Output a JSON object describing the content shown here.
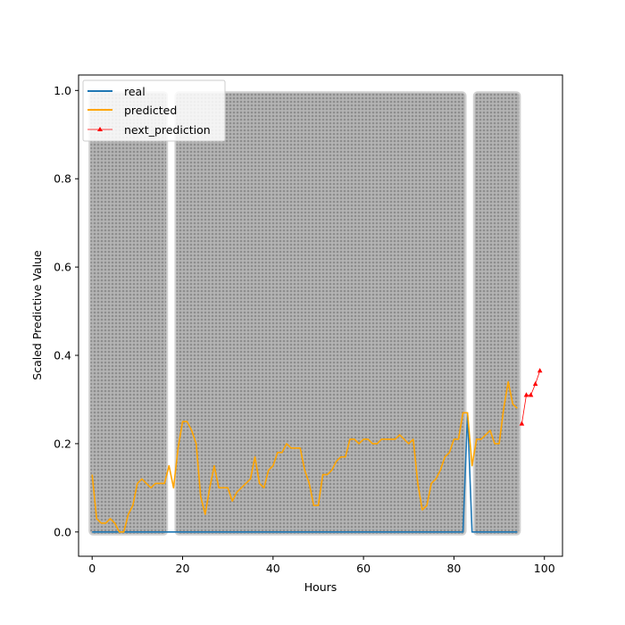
{
  "chart_data": {
    "type": "line",
    "title": "",
    "xlabel": "Hours",
    "ylabel": "Scaled Predictive Value",
    "xlim": [
      -3,
      104
    ],
    "ylim": [
      -0.055,
      1.035
    ],
    "x_ticks": [
      0,
      20,
      40,
      60,
      80,
      100
    ],
    "y_ticks": [
      0.0,
      0.2,
      0.4,
      0.6,
      0.8,
      1.0
    ],
    "x_tick_labels": [
      "0",
      "20",
      "40",
      "60",
      "80",
      "100"
    ],
    "y_tick_labels": [
      "0.0",
      "0.2",
      "0.4",
      "0.6",
      "0.8",
      "1.0"
    ],
    "grid": false,
    "legend_position": "top-left",
    "shaded_regions": {
      "color": "#a8a8a8",
      "spans": [
        [
          0,
          16
        ],
        [
          19,
          82
        ],
        [
          85,
          94
        ]
      ],
      "ymax": 0.99
    },
    "series": [
      {
        "name": "real",
        "color": "#1f77b4",
        "x": [
          0,
          82,
          83,
          84,
          94
        ],
        "values": [
          0,
          0,
          0.27,
          0,
          0
        ]
      },
      {
        "name": "predicted",
        "color": "#ffa500",
        "x": [
          0,
          1,
          2,
          3,
          4,
          5,
          6,
          7,
          8,
          9,
          10,
          11,
          12,
          13,
          14,
          15,
          16,
          17,
          18,
          19,
          20,
          21,
          22,
          23,
          24,
          25,
          26,
          27,
          28,
          29,
          30,
          31,
          32,
          33,
          34,
          35,
          36,
          37,
          38,
          39,
          40,
          41,
          42,
          43,
          44,
          45,
          46,
          47,
          48,
          49,
          50,
          51,
          52,
          53,
          54,
          55,
          56,
          57,
          58,
          59,
          60,
          61,
          62,
          63,
          64,
          65,
          66,
          67,
          68,
          69,
          70,
          71,
          72,
          73,
          74,
          75,
          76,
          77,
          78,
          79,
          80,
          81,
          82,
          83,
          84,
          85,
          86,
          87,
          88,
          89,
          90,
          91,
          92,
          93,
          94
        ],
        "values": [
          0.13,
          0.03,
          0.02,
          0.02,
          0.03,
          0.02,
          0.0,
          0.0,
          0.04,
          0.06,
          0.11,
          0.12,
          0.11,
          0.1,
          0.11,
          0.11,
          0.11,
          0.15,
          0.1,
          0.19,
          0.25,
          0.25,
          0.23,
          0.2,
          0.08,
          0.04,
          0.1,
          0.15,
          0.1,
          0.1,
          0.1,
          0.07,
          0.09,
          0.1,
          0.11,
          0.12,
          0.17,
          0.11,
          0.1,
          0.14,
          0.15,
          0.18,
          0.18,
          0.2,
          0.19,
          0.19,
          0.19,
          0.14,
          0.11,
          0.06,
          0.06,
          0.13,
          0.13,
          0.14,
          0.16,
          0.17,
          0.17,
          0.21,
          0.21,
          0.2,
          0.21,
          0.21,
          0.2,
          0.2,
          0.21,
          0.21,
          0.21,
          0.21,
          0.22,
          0.21,
          0.2,
          0.21,
          0.11,
          0.05,
          0.06,
          0.11,
          0.12,
          0.14,
          0.17,
          0.18,
          0.21,
          0.21,
          0.27,
          0.27,
          0.15,
          0.21,
          0.21,
          0.22,
          0.23,
          0.2,
          0.2,
          0.28,
          0.34,
          0.29,
          0.28
        ]
      },
      {
        "name": "next_prediction",
        "color": "#ff0000",
        "marker": "triangle",
        "x": [
          95,
          96,
          97,
          98,
          99
        ],
        "values": [
          0.245,
          0.31,
          0.31,
          0.335,
          0.365
        ]
      }
    ]
  }
}
